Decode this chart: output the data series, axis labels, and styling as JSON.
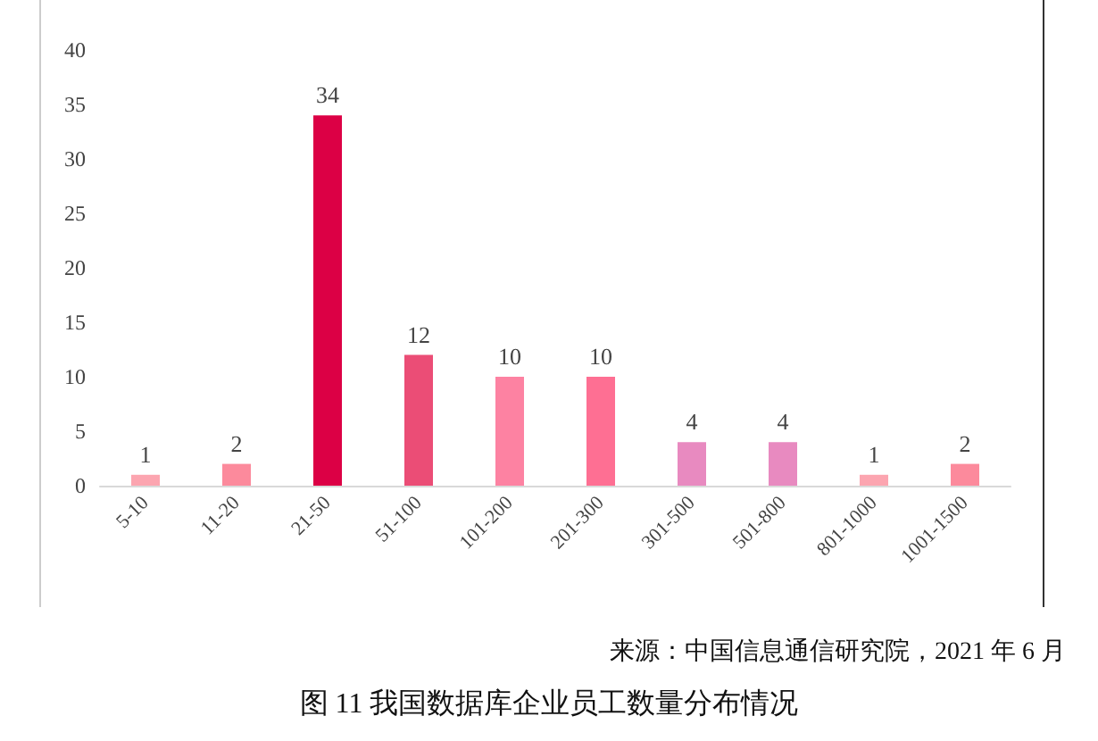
{
  "chart_data": {
    "type": "bar",
    "title": "图 11 我国数据库企业员工数量分布情况",
    "annotations": [
      "来源：中国信息通信研究院，2021 年 6 月"
    ],
    "categories": [
      "5-10",
      "11-20",
      "21-50",
      "51-100",
      "101-200",
      "201-300",
      "301-500",
      "501-800",
      "801-1000",
      "1001-1500"
    ],
    "values": [
      1,
      2,
      34,
      12,
      10,
      10,
      4,
      4,
      1,
      2
    ],
    "colors": [
      "#fca5b0",
      "#fc8a9c",
      "#dc0045",
      "#eb4d76",
      "#fd82a2",
      "#fe6f93",
      "#e88ac0",
      "#e88ac0",
      "#fca5b0",
      "#fc8a9c"
    ],
    "ylim": [
      0,
      40
    ],
    "yticks": [
      0,
      5,
      10,
      15,
      20,
      25,
      30,
      35,
      40
    ],
    "data_labels": true
  }
}
